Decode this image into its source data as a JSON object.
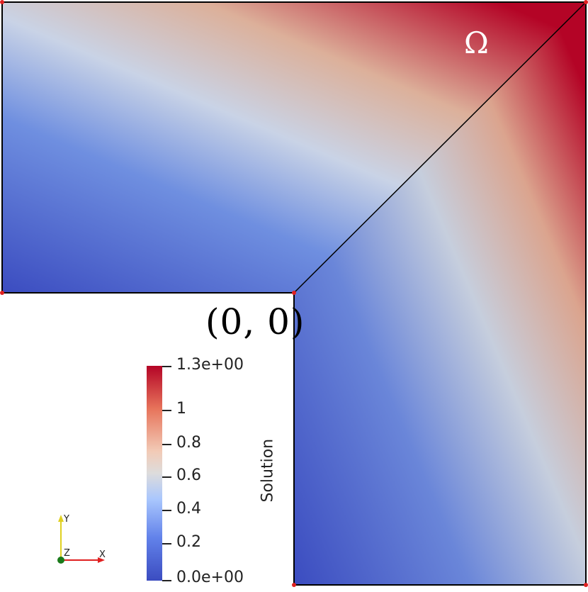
{
  "viewport": {
    "domain_label": "Ω",
    "origin_label": "(0, 0)"
  },
  "colorbar": {
    "title": "Solution",
    "colormap": "cool-to-warm",
    "colors": {
      "low": "#3b4cc0",
      "mid": "#dddcdc",
      "high": "#b40426"
    },
    "min": 0.0,
    "max": 1.3,
    "ticks": [
      {
        "value": 1.3,
        "label": "1.3e+00"
      },
      {
        "value": 1.0,
        "label": "1"
      },
      {
        "value": 0.8,
        "label": "0.8"
      },
      {
        "value": 0.6,
        "label": "0.6"
      },
      {
        "value": 0.4,
        "label": "0.4"
      },
      {
        "value": 0.2,
        "label": "0.2"
      },
      {
        "value": 0.0,
        "label": "0.0e+00"
      }
    ]
  },
  "axes": {
    "x_label": "X",
    "y_label": "Y",
    "z_label": "Z"
  }
}
